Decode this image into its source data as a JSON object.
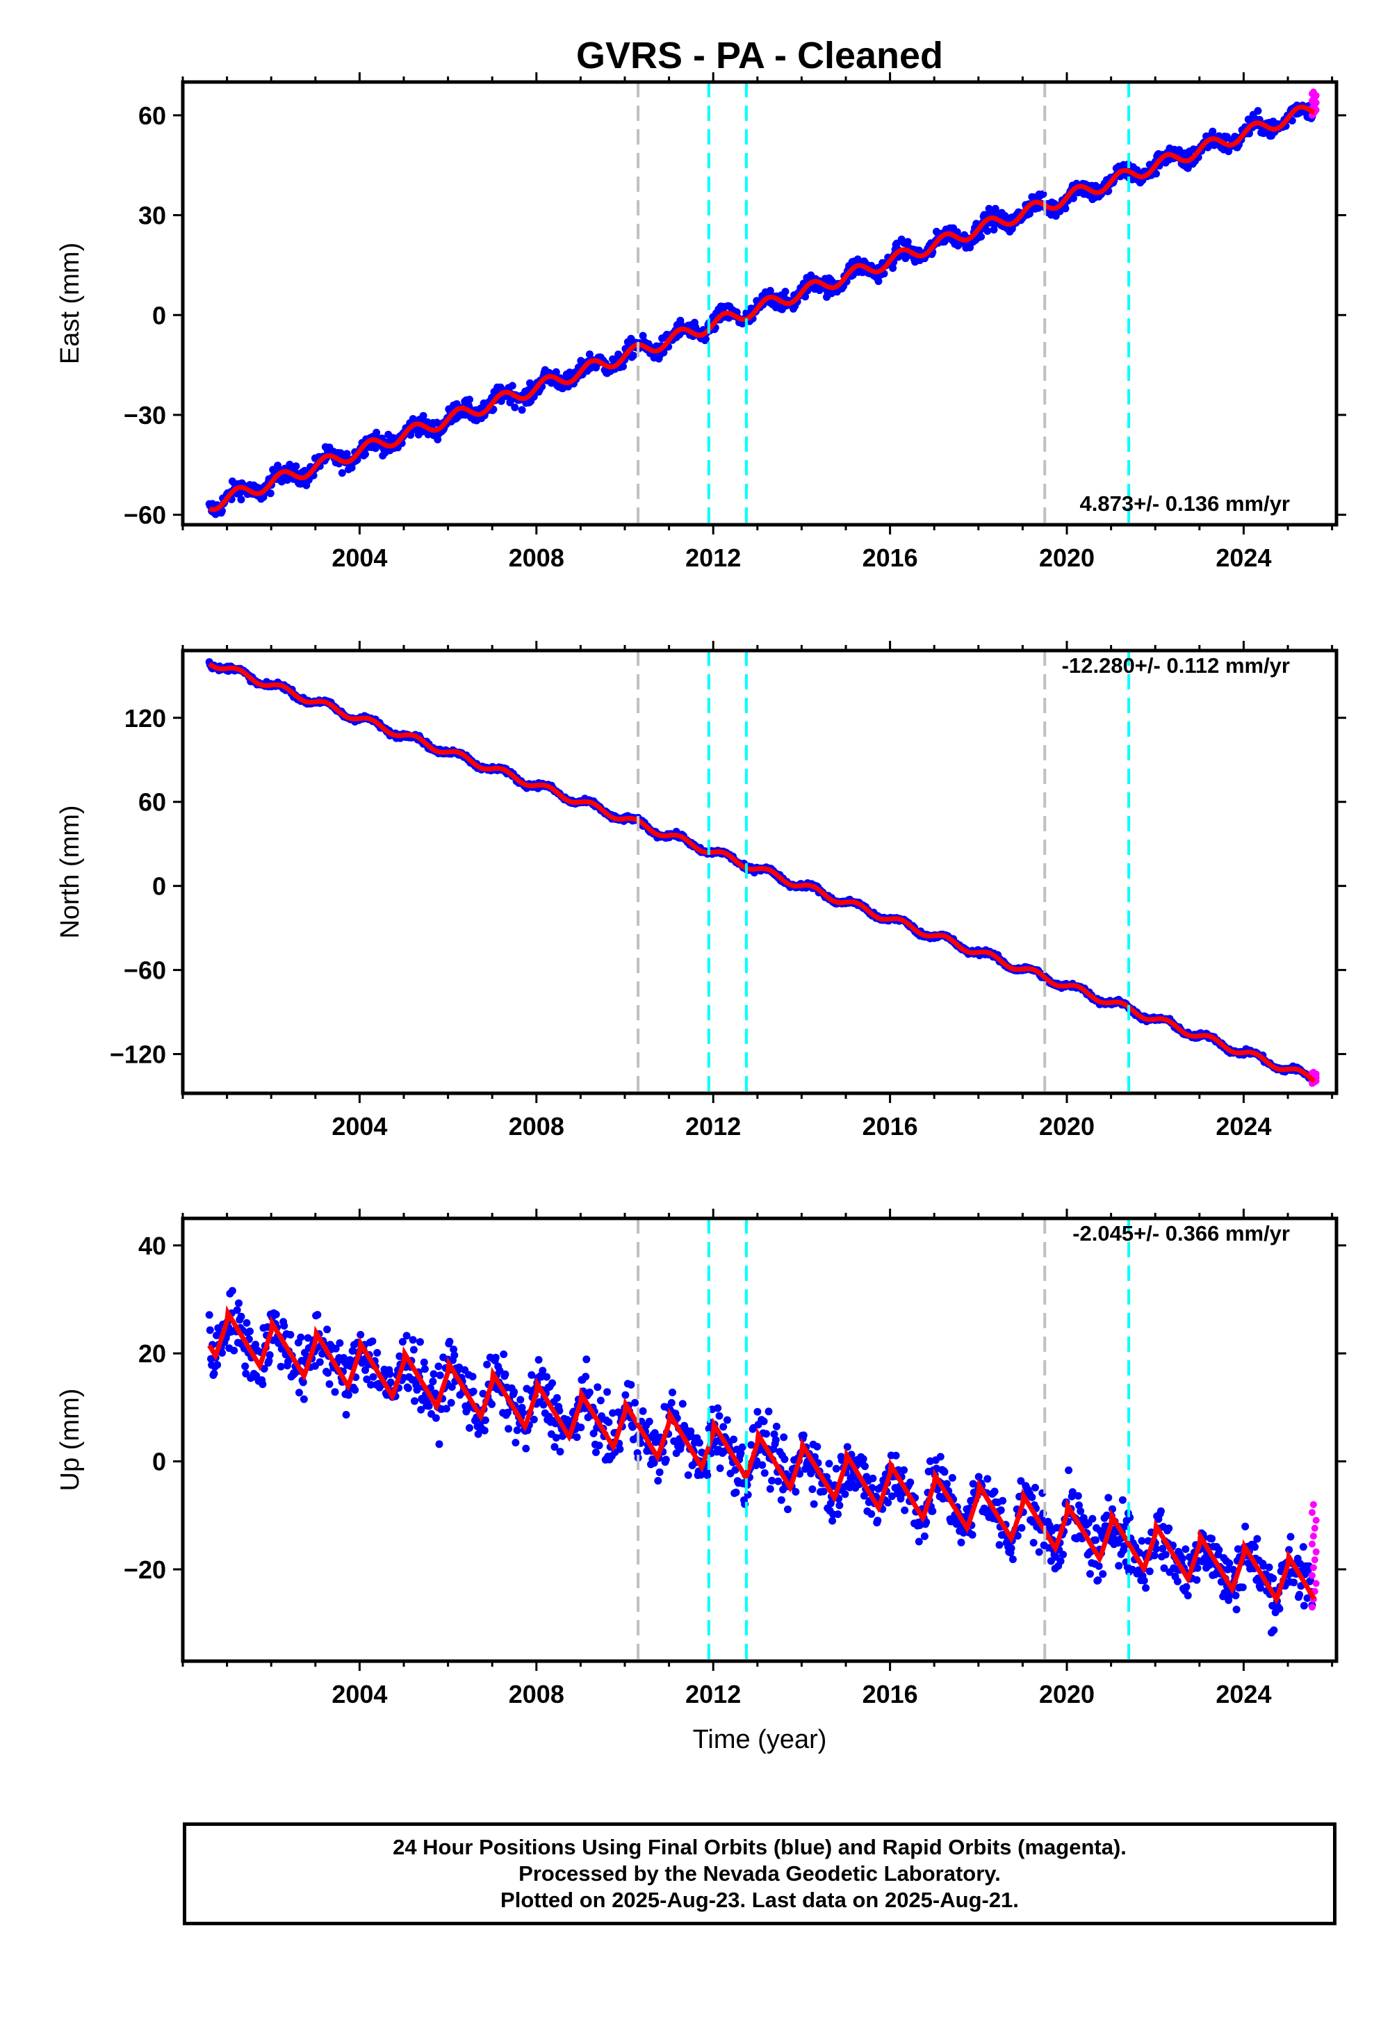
{
  "chart_data": {
    "type": "scatter",
    "title": "GVRS  - PA - Cleaned",
    "xlabel": "Time (year)",
    "xlim": [
      2000.0,
      2026.1
    ],
    "x_ticks": [
      2004,
      2008,
      2012,
      2016,
      2020,
      2024
    ],
    "x_tick_labels": [
      "2004",
      "2008",
      "2012",
      "2016",
      "2020",
      "2024"
    ],
    "colors": {
      "final_orbits": "#0000ff",
      "rapid_orbits": "#ff00ff",
      "model": "#ff0000",
      "equipment_change": "#c0c0c0",
      "earthquake": "#00ffff"
    },
    "vertical_lines": {
      "gray": [
        2010.3,
        2019.5
      ],
      "cyan": [
        2011.9,
        2012.75,
        2021.4
      ]
    },
    "panels": [
      {
        "name": "east",
        "ylabel": "East (mm)",
        "ylim": [
          -63,
          70
        ],
        "y_ticks": [
          60,
          30,
          0,
          -30,
          -60
        ],
        "y_tick_labels": [
          "60",
          "30",
          "0",
          "−30",
          "−60"
        ],
        "rate": "4.873+/- 0.136 mm/yr",
        "rate_position": "bottom-right",
        "trend": {
          "start_year": 2000.6,
          "start_value": -57,
          "end_year": 2025.6,
          "end_value": 62
        },
        "seasonal_amplitude": 2.0,
        "scatter": 2.0,
        "rapid_range": [
          60,
          67
        ]
      },
      {
        "name": "north",
        "ylabel": "North (mm)",
        "ylim": [
          -148,
          168
        ],
        "y_ticks": [
          120,
          60,
          0,
          -60,
          -120
        ],
        "y_tick_labels": [
          "120",
          "60",
          "0",
          "−60",
          "−120"
        ],
        "rate": "-12.280+/- 0.112 mm/yr",
        "rate_position": "top-right",
        "trend": {
          "start_year": 2000.6,
          "start_value": 160,
          "end_year": 2025.6,
          "end_value": -138
        },
        "seasonal_amplitude": 2.5,
        "scatter": 1.3,
        "rapid_range": [
          -141,
          -133
        ]
      },
      {
        "name": "up",
        "ylabel": "Up (mm)",
        "ylim": [
          -37,
          45
        ],
        "y_ticks": [
          40,
          20,
          0,
          -20
        ],
        "y_tick_labels": [
          "40",
          "20",
          "0",
          "−20"
        ],
        "rate": "-2.045+/- 0.366 mm/yr",
        "rate_position": "top-right",
        "trend": {
          "start_year": 2000.6,
          "start_value": 24,
          "end_year": 2025.6,
          "end_value": -23
        },
        "seasonal_amplitude": 4.5,
        "scatter": 4.0,
        "rapid_range": [
          -27,
          -8
        ]
      }
    ]
  },
  "footer": {
    "line1": "24 Hour Positions Using Final Orbits (blue) and Rapid Orbits (magenta).",
    "line2": "Processed by the Nevada Geodetic Laboratory.",
    "line3": "Plotted on 2025-Aug-23. Last data on 2025-Aug-21."
  }
}
